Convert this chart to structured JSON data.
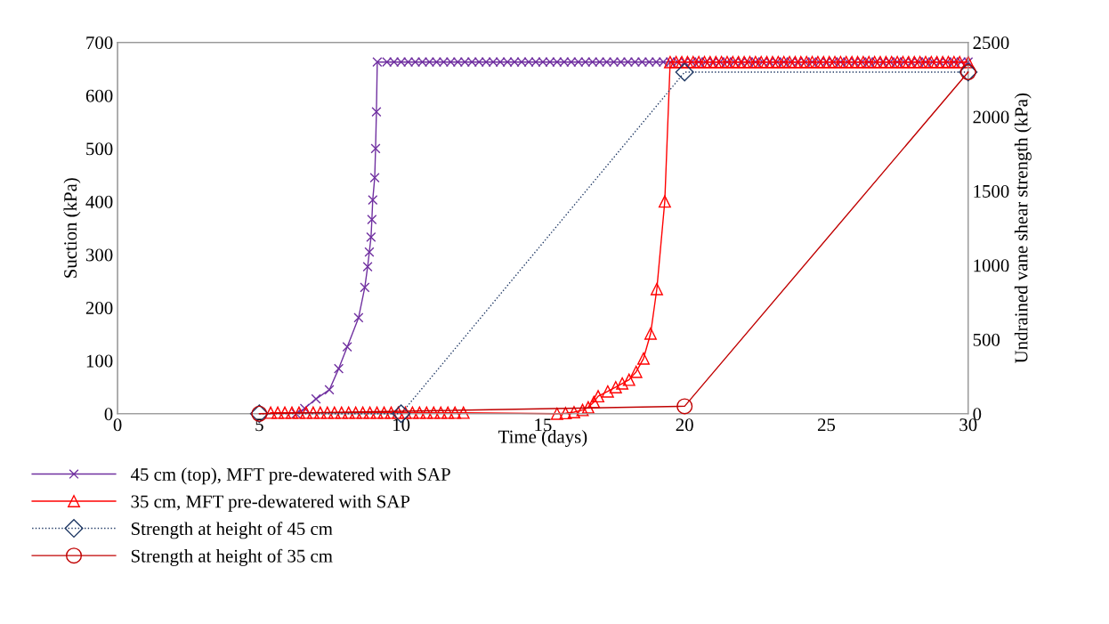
{
  "chart_data": {
    "type": "line",
    "xlabel": "Time (days)",
    "ylabel": "Suction (kPa)",
    "y2label": "Undrained vane shear strength (kPa)",
    "xlim": [
      0,
      30
    ],
    "xticks": [
      0,
      5,
      10,
      15,
      20,
      25,
      30
    ],
    "ylim": [
      0,
      700
    ],
    "yticks": [
      0,
      100,
      200,
      300,
      400,
      500,
      600,
      700
    ],
    "y2lim": [
      0,
      2500
    ],
    "y2ticks": [
      0,
      500,
      1000,
      1500,
      2000,
      2500
    ],
    "grid": false,
    "legend": "bottom left",
    "series": [
      {
        "name": "45 cm (top), MFT pre-dewatered with SAP",
        "color": "#7030a0",
        "marker": "cross",
        "line_style": "solid",
        "x": [
          6.3,
          6.6,
          7.0,
          7.47,
          7.8,
          8.1,
          8.5,
          8.72,
          8.82,
          8.88,
          8.94,
          8.97,
          9.0,
          9.07,
          9.1,
          9.13,
          9.16,
          9.5,
          9.75,
          10,
          10.25,
          10.5,
          10.75,
          11,
          11.25,
          11.5,
          11.75,
          12,
          12.25,
          12.5,
          12.75,
          13,
          13.25,
          13.5,
          13.75,
          14,
          14.25,
          14.5,
          14.75,
          15,
          15.25,
          15.5,
          15.75,
          16,
          16.25,
          16.5,
          16.75,
          17,
          17.25,
          17.5,
          17.75,
          18,
          18.25,
          18.5,
          18.75,
          19,
          19.25,
          19.5,
          19.75,
          20,
          20.25,
          20.5,
          20.75,
          21,
          21.25,
          21.5,
          21.75,
          22,
          22.25,
          22.5,
          22.75,
          23,
          23.25,
          23.5,
          23.75,
          24,
          24.25,
          24.5,
          24.75,
          25,
          25.25,
          25.5,
          25.75,
          26,
          26.25,
          26.5,
          26.75,
          27,
          27.25,
          27.5,
          27.75,
          28,
          28.25,
          28.5,
          28.75,
          29,
          29.25,
          29.5,
          29.75,
          30
        ],
        "values": [
          0,
          10,
          28,
          45,
          85,
          126,
          181,
          238,
          277,
          305,
          333,
          366,
          403,
          445,
          500,
          569,
          663,
          663,
          663,
          663,
          663,
          663,
          663,
          663,
          663,
          663,
          663,
          663,
          663,
          663,
          663,
          663,
          663,
          663,
          663,
          663,
          663,
          663,
          663,
          663,
          663,
          663,
          663,
          663,
          663,
          663,
          663,
          663,
          663,
          663,
          663,
          663,
          663,
          663,
          663,
          663,
          663,
          663,
          663,
          663,
          663,
          663,
          663,
          663,
          663,
          663,
          663,
          663,
          663,
          663,
          663,
          663,
          663,
          663,
          663,
          663,
          663,
          663,
          663,
          663,
          663,
          663,
          663,
          663,
          663,
          663,
          663,
          663,
          663,
          663,
          663,
          663,
          663,
          663,
          663,
          663,
          663,
          663,
          663,
          663
        ]
      },
      {
        "name": "35 cm, MFT pre-dewatered with SAP",
        "color": "#ff0000",
        "marker": "triangle",
        "line_style": "solid",
        "x": [
          5.4,
          5.65,
          5.9,
          6.15,
          6.4,
          6.65,
          6.9,
          7.15,
          7.4,
          7.65,
          7.9,
          8.15,
          8.4,
          8.65,
          8.9,
          9.15,
          9.4,
          9.65,
          9.9,
          10.15,
          10.4,
          10.65,
          10.9,
          11.15,
          11.4,
          11.65,
          11.9,
          12.2,
          15.5,
          15.8,
          16.1,
          16.4,
          16.6,
          16.8,
          16.95,
          17.29,
          17.57,
          17.8,
          18.04,
          18.29,
          18.55,
          18.8,
          19.02,
          19.3,
          19.49,
          19.7,
          19.9,
          20.1,
          20.3,
          20.5,
          20.7,
          20.9,
          21.1,
          21.3,
          21.5,
          21.7,
          21.9,
          22.1,
          22.3,
          22.5,
          22.7,
          22.9,
          23.1,
          23.3,
          23.5,
          23.7,
          23.9,
          24.1,
          24.3,
          24.5,
          24.7,
          24.9,
          25.1,
          25.3,
          25.5,
          25.7,
          25.9,
          26.1,
          26.3,
          26.5,
          26.7,
          26.9,
          27.1,
          27.3,
          27.5,
          27.7,
          27.9,
          28.1,
          28.3,
          28.5,
          28.7,
          28.9,
          29.1,
          29.3,
          29.5,
          29.7,
          30
        ],
        "values": [
          2,
          2,
          2,
          2,
          2,
          2,
          2,
          2,
          2,
          2,
          2,
          2,
          2,
          2,
          2,
          2,
          2,
          2,
          2,
          2,
          2,
          2,
          2,
          2,
          2,
          2,
          2,
          2,
          0,
          1,
          3,
          7,
          12,
          22,
          33,
          42,
          50,
          57,
          64,
          79,
          104,
          151,
          235,
          400,
          663,
          663,
          663,
          663,
          663,
          663,
          663,
          663,
          663,
          663,
          663,
          663,
          663,
          663,
          663,
          663,
          663,
          663,
          663,
          663,
          663,
          663,
          663,
          663,
          663,
          663,
          663,
          663,
          663,
          663,
          663,
          663,
          663,
          663,
          663,
          663,
          663,
          663,
          663,
          663,
          663,
          663,
          663,
          663,
          663,
          663,
          663,
          663,
          663,
          663,
          663,
          663,
          663
        ]
      },
      {
        "name": "Strength at height of 45 cm",
        "color": "#1f3864",
        "marker": "diamond",
        "line_style": "dotted",
        "axis": "y2",
        "x": [
          5,
          10,
          20,
          30
        ],
        "values": [
          0,
          0,
          2300,
          2300
        ]
      },
      {
        "name": "Strength at height of 35 cm",
        "color": "#c00000",
        "marker": "circle",
        "line_style": "solid",
        "axis": "y2",
        "x": [
          5,
          20,
          30
        ],
        "values": [
          0,
          50,
          2300
        ]
      }
    ]
  }
}
